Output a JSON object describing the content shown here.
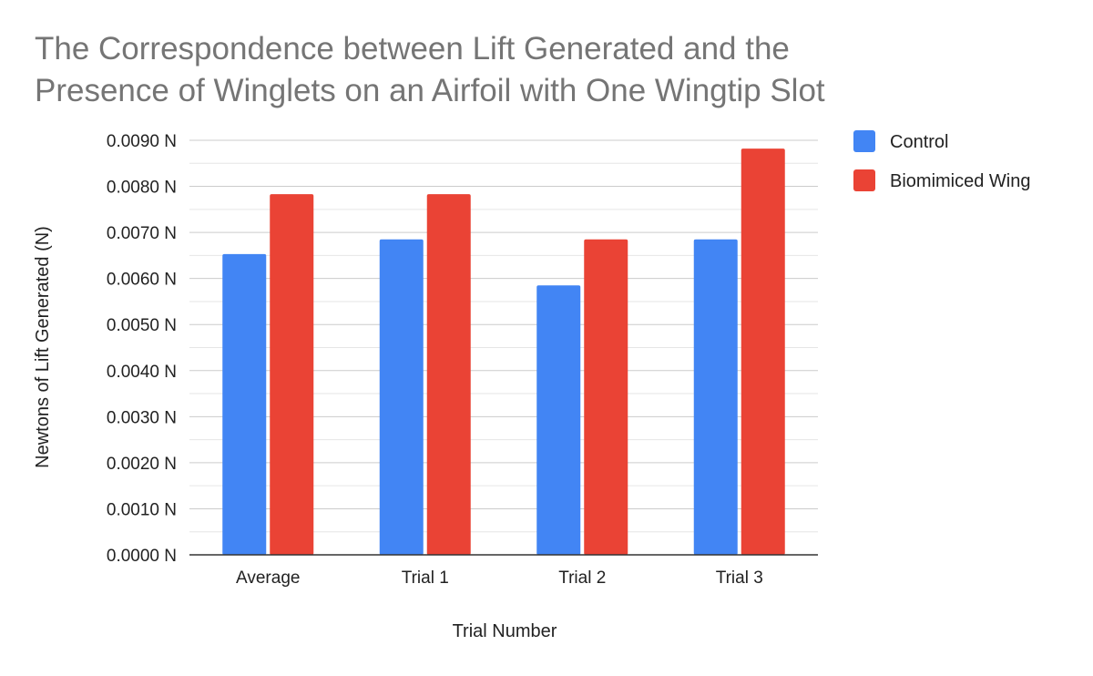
{
  "chart_data": {
    "type": "bar",
    "title_lines": [
      "The Correspondence between Lift Generated and the",
      "Presence of Winglets on an Airfoil with One Wingtip Slot"
    ],
    "xlabel": "Trial Number",
    "ylabel": "Newtons of Lift Generated (N)",
    "categories": [
      "Average",
      "Trial 1",
      "Trial 2",
      "Trial 3"
    ],
    "series": [
      {
        "name": "Control",
        "color": "#4285f4",
        "values": [
          0.00653,
          0.00685,
          0.00585,
          0.00685
        ]
      },
      {
        "name": "Biomimiced Wing",
        "color": "#ea4335",
        "values": [
          0.00783,
          0.00783,
          0.00685,
          0.00882
        ]
      }
    ],
    "ylim": [
      0,
      0.009
    ],
    "yticks": [
      0,
      0.001,
      0.002,
      0.003,
      0.004,
      0.005,
      0.006,
      0.007,
      0.008,
      0.009
    ],
    "ytick_labels": [
      "0.0000 N",
      "0.0010 N",
      "0.0020 N",
      "0.0030 N",
      "0.0040 N",
      "0.0050 N",
      "0.0060 N",
      "0.0070 N",
      "0.0080 N",
      "0.0090 N"
    ],
    "grid": true,
    "minor_grid": true,
    "legend_position": "right"
  }
}
